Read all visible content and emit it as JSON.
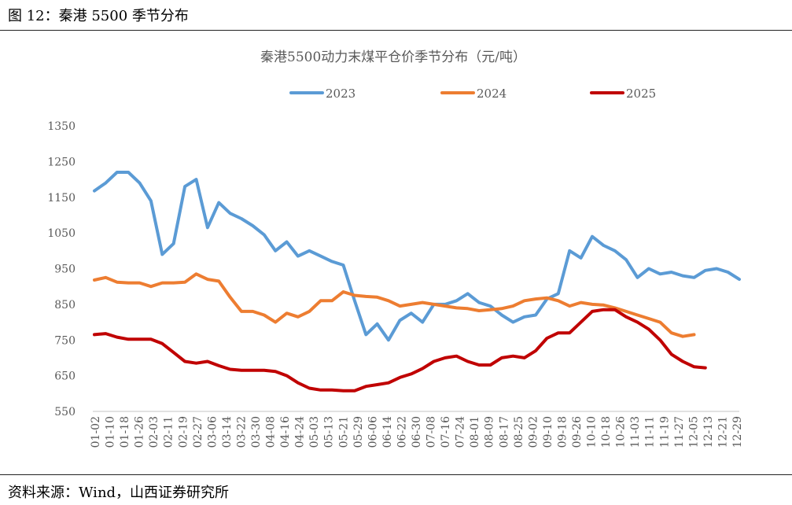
{
  "figure": {
    "header": "图 12：秦港 5500 季节分布",
    "footer": "资料来源：Wind，山西证券研究所"
  },
  "chart_data": {
    "type": "line",
    "title": "秦港5500动力末煤平仓价季节分布（元/吨）",
    "xlabel": "",
    "ylabel": "",
    "ylim": [
      550,
      1350
    ],
    "y_ticks": [
      550,
      650,
      750,
      850,
      950,
      1050,
      1150,
      1250,
      1350
    ],
    "grid": false,
    "legend_position": "top-center",
    "x_ticks": [
      "01-02",
      "01-10",
      "01-18",
      "01-26",
      "02-03",
      "02-11",
      "02-19",
      "02-27",
      "03-06",
      "03-14",
      "03-22",
      "03-30",
      "04-08",
      "04-16",
      "04-24",
      "05-03",
      "05-13",
      "05-21",
      "05-29",
      "06-06",
      "06-14",
      "06-22",
      "06-30",
      "07-08",
      "07-16",
      "07-24",
      "08-01",
      "08-09",
      "08-17",
      "08-25",
      "09-02",
      "09-10",
      "09-18",
      "09-26",
      "10-10",
      "10-18",
      "10-26",
      "11-03",
      "11-11",
      "11-19",
      "11-27",
      "12-05",
      "12-13",
      "12-21",
      "12-29"
    ],
    "series": [
      {
        "name": "2023",
        "color": "#5B9BD5",
        "values": [
          1168,
          1190,
          1220,
          1220,
          1190,
          1140,
          990,
          1020,
          1180,
          1200,
          1065,
          1135,
          1105,
          1090,
          1070,
          1045,
          1000,
          1025,
          985,
          1000,
          985,
          970,
          960,
          860,
          765,
          795,
          750,
          805,
          825,
          800,
          850,
          850,
          860,
          880,
          855,
          845,
          820,
          800,
          815,
          820,
          865,
          880,
          1000,
          980,
          1040,
          1015,
          1000,
          975,
          925,
          950,
          935,
          940,
          930,
          925,
          945,
          950,
          940,
          920
        ]
      },
      {
        "name": "2024",
        "color": "#ED7D31",
        "values": [
          918,
          925,
          912,
          910,
          910,
          900,
          910,
          910,
          912,
          935,
          920,
          915,
          870,
          830,
          830,
          820,
          800,
          825,
          815,
          830,
          860,
          860,
          885,
          875,
          872,
          870,
          860,
          845,
          850,
          855,
          850,
          845,
          840,
          838,
          832,
          835,
          838,
          845,
          860,
          865,
          868,
          860,
          845,
          855,
          850,
          848,
          840,
          830,
          820,
          810,
          800,
          770,
          760,
          765
        ]
      },
      {
        "name": "2025",
        "color": "#C00000",
        "values": [
          765,
          768,
          758,
          752,
          752,
          752,
          740,
          715,
          690,
          685,
          690,
          678,
          668,
          665,
          665,
          665,
          662,
          650,
          630,
          615,
          610,
          610,
          608,
          608,
          620,
          625,
          630,
          645,
          655,
          670,
          690,
          700,
          705,
          690,
          680,
          680,
          700,
          705,
          700,
          720,
          755,
          770,
          770,
          800,
          830,
          835,
          835,
          815,
          800,
          780,
          750,
          710,
          690,
          675,
          672
        ]
      }
    ]
  }
}
